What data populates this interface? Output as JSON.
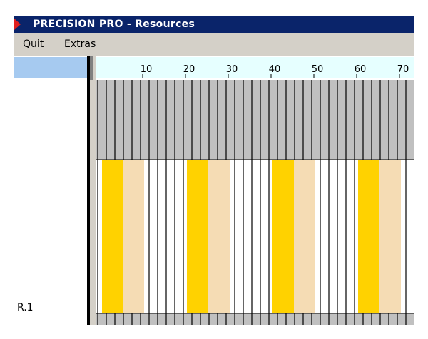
{
  "window": {
    "title": "PRECISION PRO - Resources"
  },
  "menu": [
    "Quit",
    "Extras"
  ],
  "ruler": [
    10,
    20,
    30,
    40,
    50,
    60,
    70
  ],
  "resources": [
    "R.1"
  ]
}
